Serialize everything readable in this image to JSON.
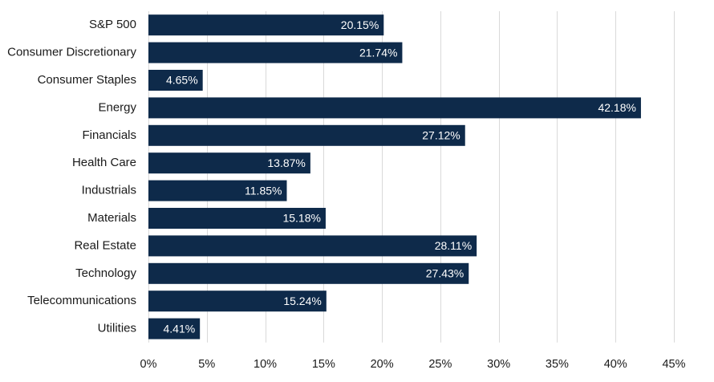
{
  "chart_data": {
    "type": "bar",
    "orientation": "horizontal",
    "title": "",
    "xlabel": "",
    "ylabel": "",
    "categories": [
      "S&P 500",
      "Consumer Discretionary",
      "Consumer Staples",
      "Energy",
      "Financials",
      "Health Care",
      "Industrials",
      "Materials",
      "Real Estate",
      "Technology",
      "Telecommunications",
      "Utilities"
    ],
    "values": [
      20.15,
      21.74,
      4.65,
      42.18,
      27.12,
      13.87,
      11.85,
      15.18,
      28.11,
      27.43,
      15.24,
      4.41
    ],
    "data_labels": [
      "20.15%",
      "21.74%",
      "4.65%",
      "42.18%",
      "27.12%",
      "13.87%",
      "11.85%",
      "15.18%",
      "28.11%",
      "27.43%",
      "15.24%",
      "4.41%"
    ],
    "xlim": [
      0,
      45
    ],
    "x_ticks": [
      0,
      5,
      10,
      15,
      20,
      25,
      30,
      35,
      40,
      45
    ],
    "x_tick_labels": [
      "0%",
      "5%",
      "10%",
      "15%",
      "20%",
      "25%",
      "30%",
      "35%",
      "40%",
      "45%"
    ],
    "grid": "vertical",
    "legend": "none",
    "bar_color": "#0e2a4a",
    "data_label_color": "#ffffff"
  }
}
